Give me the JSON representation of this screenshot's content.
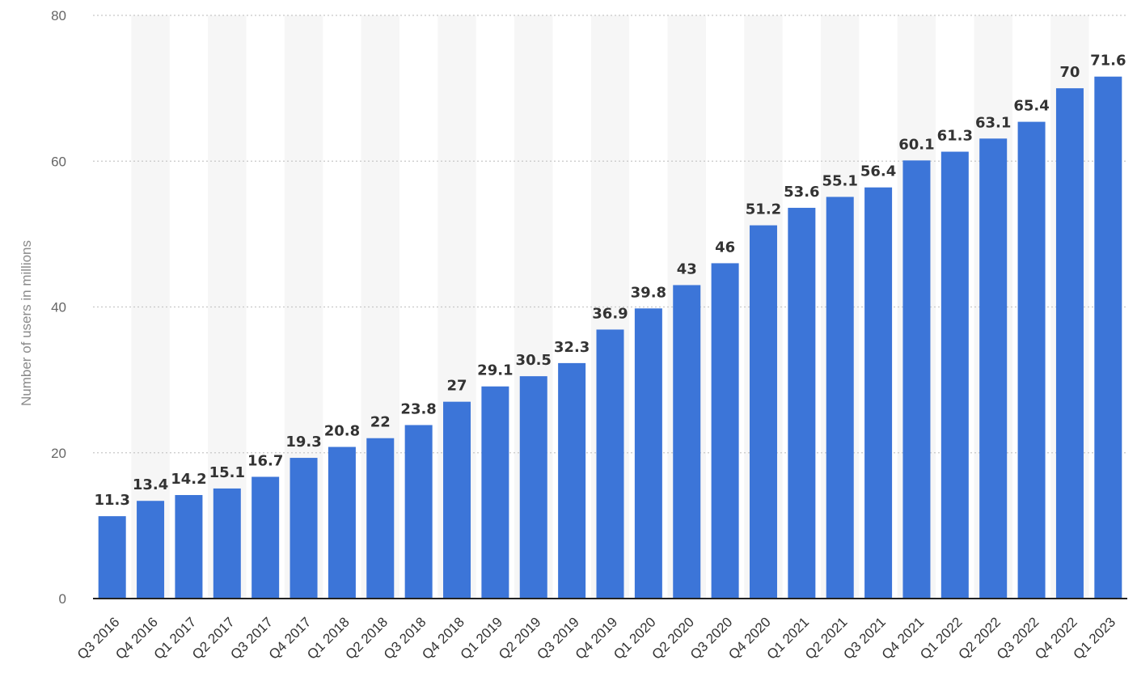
{
  "chart_data": {
    "type": "bar",
    "categories": [
      "Q3 2016",
      "Q4 2016",
      "Q1 2017",
      "Q2 2017",
      "Q3 2017",
      "Q4 2017",
      "Q1 2018",
      "Q2 2018",
      "Q3 2018",
      "Q4 2018",
      "Q1 2019",
      "Q2 2019",
      "Q3 2019",
      "Q4 2019",
      "Q1 2020",
      "Q2 2020",
      "Q3 2020",
      "Q4 2020",
      "Q1 2021",
      "Q2 2021",
      "Q3 2021",
      "Q4 2021",
      "Q1 2022",
      "Q2 2022",
      "Q3 2022",
      "Q4 2022",
      "Q1 2023"
    ],
    "values": [
      11.3,
      13.4,
      14.2,
      15.1,
      16.7,
      19.3,
      20.8,
      22,
      23.8,
      27,
      29.1,
      30.5,
      32.3,
      36.9,
      39.8,
      43,
      46,
      51.2,
      53.6,
      55.1,
      56.4,
      60.1,
      61.3,
      63.1,
      65.4,
      70,
      71.6
    ],
    "data_labels": [
      "11.3",
      "13.4",
      "14.2",
      "15.1",
      "16.7",
      "19.3",
      "20.8",
      "22",
      "23.8",
      "27",
      "29.1",
      "30.5",
      "32.3",
      "36.9",
      "39.8",
      "43",
      "46",
      "51.2",
      "53.6",
      "55.1",
      "56.4",
      "60.1",
      "61.3",
      "63.1",
      "65.4",
      "70",
      "71.6"
    ],
    "title": "",
    "xlabel": "",
    "ylabel": "Number of users in millions",
    "ylim": [
      0,
      80
    ],
    "yticks": [
      0,
      20,
      40,
      60,
      80
    ],
    "ytick_labels": [
      "0",
      "20",
      "40",
      "60",
      "80"
    ],
    "grid": true,
    "bar_color": "#3c75d8",
    "band_color": "#f6f6f6",
    "grid_color": "#c8c8c8",
    "axis_color": "#222222"
  }
}
